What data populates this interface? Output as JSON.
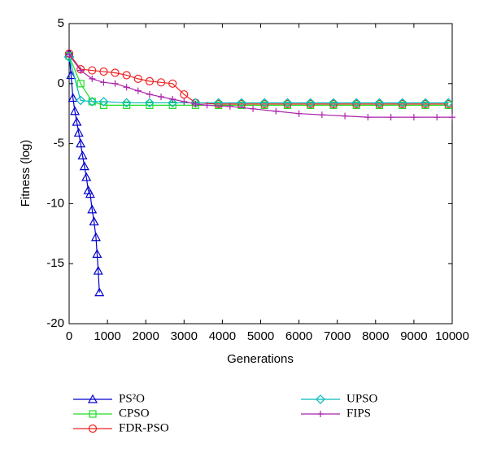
{
  "chart_data": {
    "type": "line",
    "xlabel": "Generations",
    "ylabel": "Fitness (log)",
    "xlim": [
      0,
      10000
    ],
    "ylim": [
      -20,
      5
    ],
    "xticks": [
      0,
      1000,
      2000,
      3000,
      4000,
      5000,
      6000,
      7000,
      8000,
      9000,
      10000
    ],
    "yticks": [
      5,
      0,
      -5,
      -10,
      -15,
      -20
    ],
    "series": [
      {
        "name": "PS²O",
        "color": "#0000cc",
        "marker": "triangle",
        "x": [
          0,
          50,
          100,
          150,
          200,
          250,
          300,
          350,
          400,
          450,
          500,
          550,
          600,
          650,
          700,
          730,
          760,
          790
        ],
        "values": [
          2.5,
          0.7,
          -1.2,
          -2.3,
          -3.2,
          -4.1,
          -5.0,
          -6.0,
          -6.9,
          -7.8,
          -8.9,
          -9.2,
          -10.5,
          -11.5,
          -12.8,
          -14.2,
          -15.6,
          -17.4
        ]
      },
      {
        "name": "CPSO",
        "color": "#22dd22",
        "marker": "square",
        "x": [
          0,
          300,
          600,
          900,
          1500,
          2100,
          2700,
          3300,
          3900,
          4500,
          5100,
          5700,
          6300,
          6900,
          7500,
          8100,
          8700,
          9300,
          9900
        ],
        "values": [
          2.3,
          0.0,
          -1.5,
          -1.8,
          -1.8,
          -1.8,
          -1.8,
          -1.8,
          -1.8,
          -1.8,
          -1.8,
          -1.8,
          -1.8,
          -1.8,
          -1.8,
          -1.8,
          -1.8,
          -1.8,
          -1.8
        ]
      },
      {
        "name": "FDR-PSO",
        "color": "#ee2222",
        "marker": "circle",
        "x": [
          0,
          300,
          600,
          900,
          1200,
          1500,
          1800,
          2100,
          2400,
          2700,
          3000,
          3300,
          3900,
          4500,
          5100,
          5700,
          6300,
          6900,
          7500,
          8100,
          8700,
          9300,
          9900
        ],
        "values": [
          2.5,
          1.2,
          1.1,
          1.0,
          0.9,
          0.7,
          0.4,
          0.2,
          0.1,
          0.0,
          -0.9,
          -1.6,
          -1.7,
          -1.7,
          -1.7,
          -1.7,
          -1.7,
          -1.7,
          -1.7,
          -1.7,
          -1.7,
          -1.7,
          -1.7
        ]
      },
      {
        "name": "UPSO",
        "color": "#00bbbb",
        "marker": "diamond",
        "x": [
          0,
          300,
          600,
          900,
          1500,
          2100,
          2700,
          3300,
          3900,
          4500,
          5100,
          5700,
          6300,
          6900,
          7500,
          8100,
          8700,
          9300,
          9900
        ],
        "values": [
          2.2,
          -1.4,
          -1.5,
          -1.5,
          -1.6,
          -1.6,
          -1.6,
          -1.6,
          -1.6,
          -1.6,
          -1.6,
          -1.6,
          -1.6,
          -1.6,
          -1.6,
          -1.6,
          -1.6,
          -1.6,
          -1.6
        ]
      },
      {
        "name": "FIPS",
        "color": "#aa22aa",
        "marker": "plus",
        "x": [
          0,
          300,
          600,
          900,
          1200,
          1500,
          1800,
          2100,
          2400,
          2700,
          3000,
          3300,
          3600,
          4200,
          4800,
          5400,
          6000,
          6600,
          7200,
          7800,
          8400,
          9000,
          9600,
          10000
        ],
        "values": [
          2.4,
          1.1,
          0.4,
          0.1,
          0.0,
          -0.3,
          -0.6,
          -0.9,
          -1.1,
          -1.3,
          -1.5,
          -1.7,
          -1.8,
          -1.9,
          -2.1,
          -2.3,
          -2.5,
          -2.6,
          -2.7,
          -2.8,
          -2.8,
          -2.8,
          -2.8,
          -2.8
        ]
      }
    ]
  }
}
